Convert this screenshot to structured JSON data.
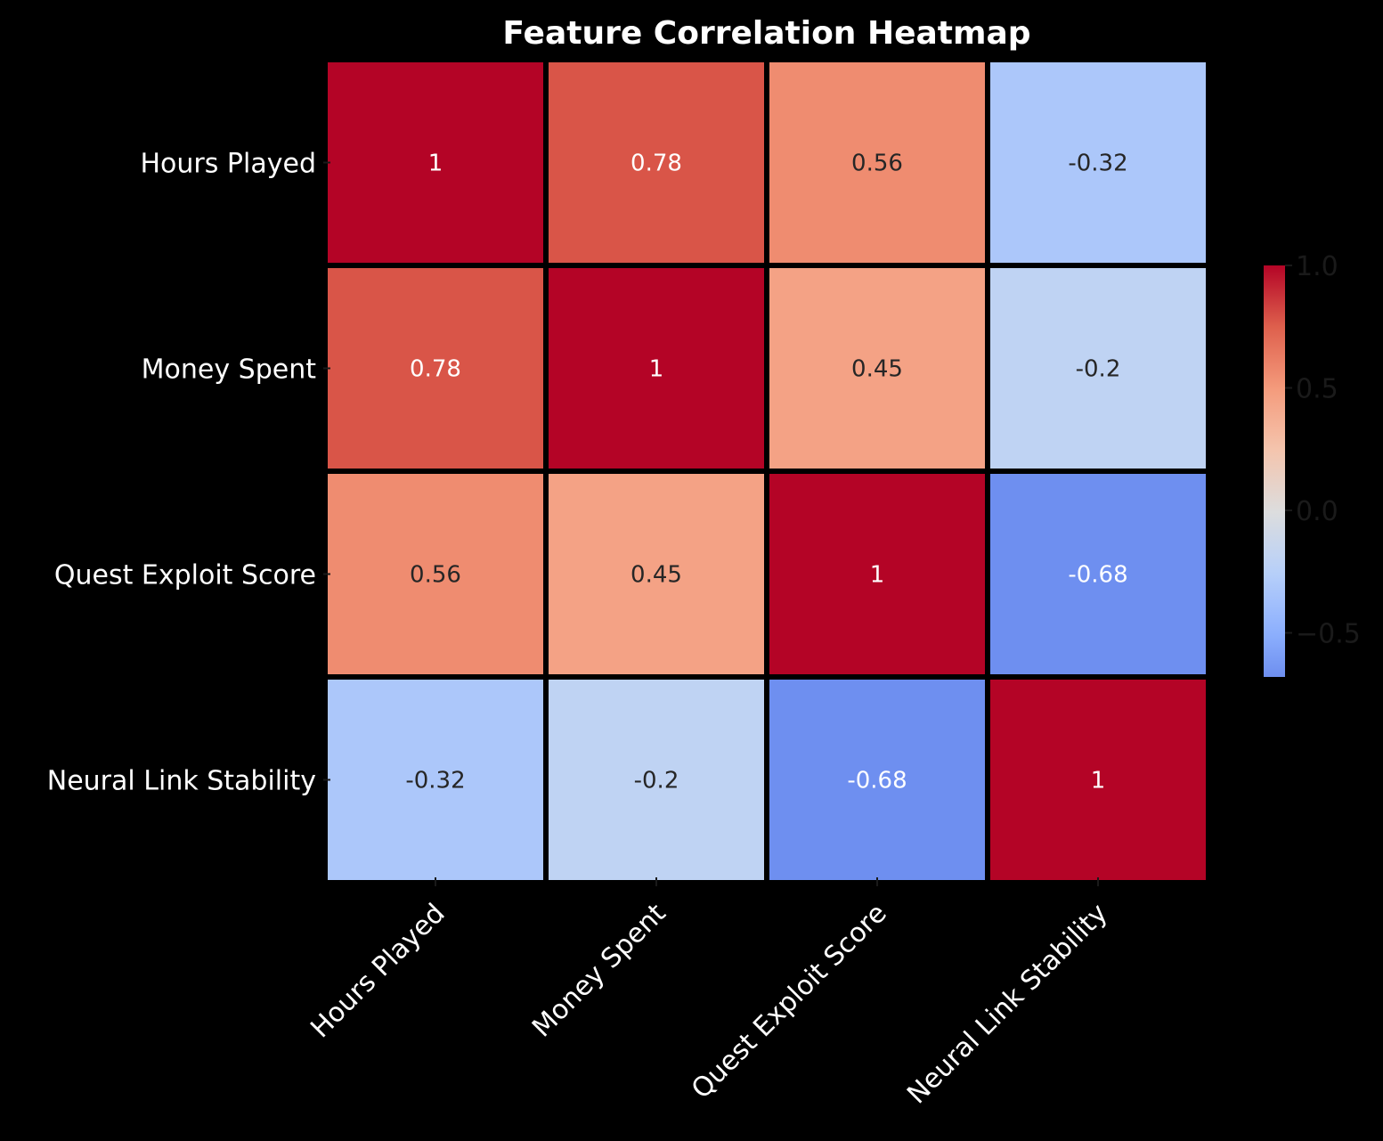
{
  "chart_data": {
    "type": "heatmap",
    "title": "Feature Correlation Heatmap",
    "xlabel": "",
    "ylabel": "",
    "x_categories": [
      "Hours Played",
      "Money Spent",
      "Quest Exploit Score",
      "Neural Link Stability"
    ],
    "y_categories": [
      "Hours Played",
      "Money Spent",
      "Quest Exploit Score",
      "Neural Link Stability"
    ],
    "values": [
      [
        1,
        0.78,
        0.56,
        -0.32
      ],
      [
        0.78,
        1,
        0.45,
        -0.2
      ],
      [
        0.56,
        0.45,
        1,
        -0.68
      ],
      [
        -0.32,
        -0.2,
        -0.68,
        1
      ]
    ],
    "annotations": [
      [
        "1",
        "0.78",
        "0.56",
        "-0.32"
      ],
      [
        "0.78",
        "1",
        "0.45",
        "-0.2"
      ],
      [
        "0.56",
        "0.45",
        "1",
        "-0.68"
      ],
      [
        "-0.32",
        "-0.2",
        "-0.68",
        "1"
      ]
    ],
    "colormap": "coolwarm",
    "vmin": -0.68,
    "vmax": 1.0,
    "colorbar": {
      "ticks": [
        1.0,
        0.5,
        0.0,
        -0.5
      ],
      "tick_labels": [
        "1.0",
        "0.5",
        "0.0",
        "−0.5"
      ]
    },
    "legend": "colorbar-right",
    "grid": false
  },
  "colors": {
    "background": "#000000",
    "text": "#ffffff",
    "colorbar_text": "#1a1a1a",
    "cell_separator": "#000000"
  }
}
